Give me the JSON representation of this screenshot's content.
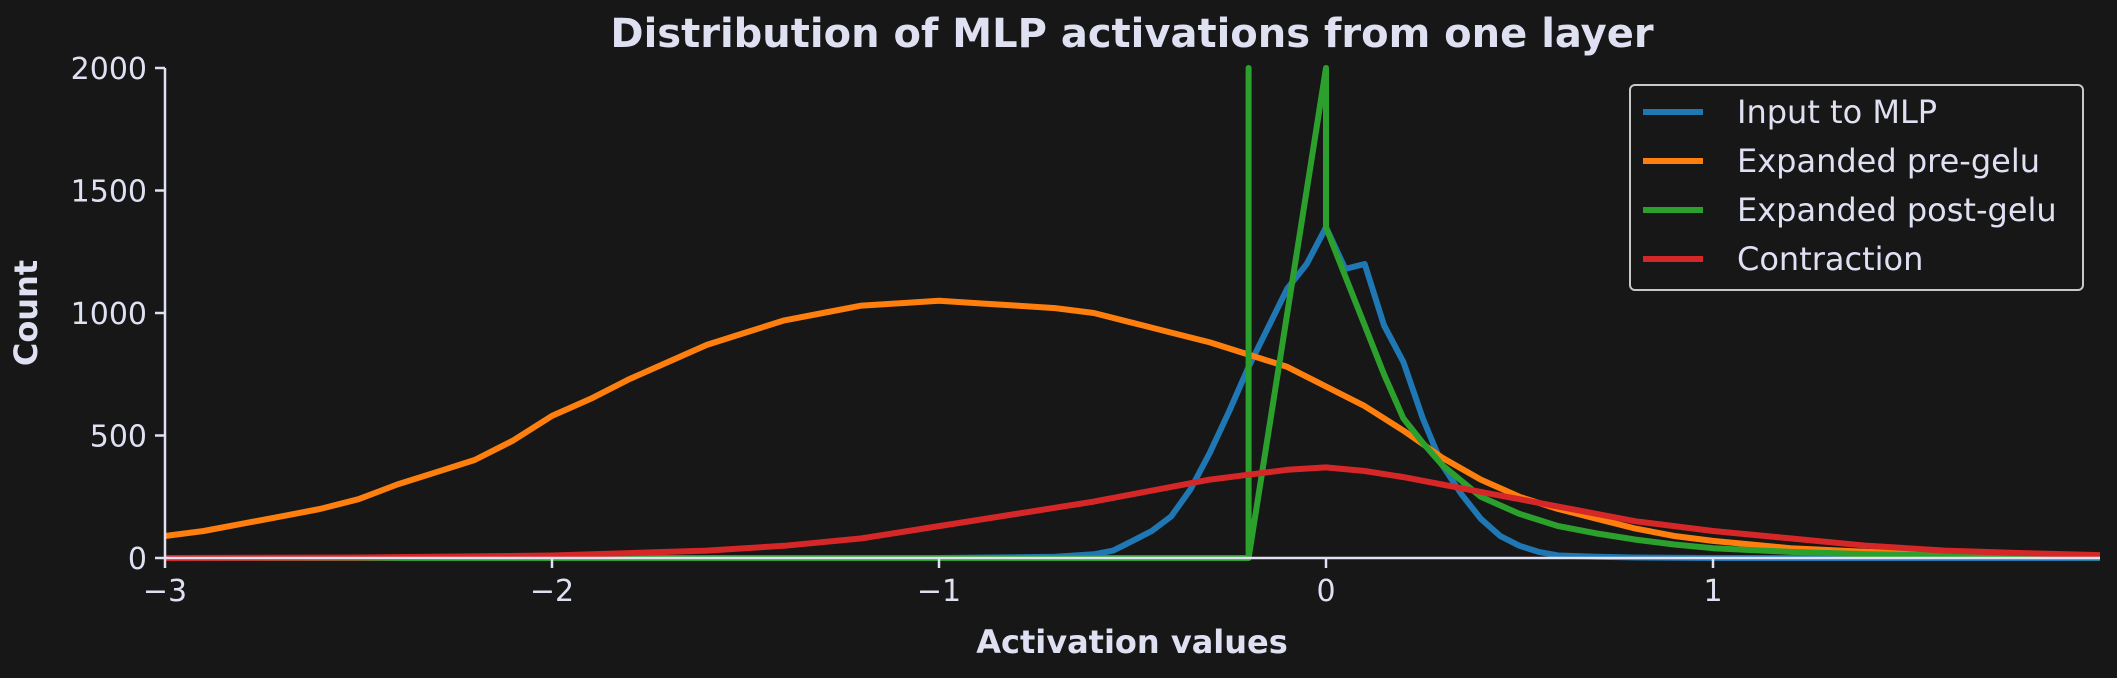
{
  "chart_data": {
    "type": "line",
    "title": "Distribution of MLP activations from one layer",
    "xlabel": "Activation values",
    "ylabel": "Count",
    "xlim": [
      -3,
      2
    ],
    "ylim": [
      0,
      2000
    ],
    "xticks": [
      -3,
      -2,
      -1,
      0,
      1
    ],
    "xtick_labels": [
      "−3",
      "−2",
      "−1",
      "0",
      "1"
    ],
    "yticks": [
      0,
      500,
      1000,
      1500,
      2000
    ],
    "ytick_labels": [
      "0",
      "500",
      "1000",
      "1500",
      "2000"
    ],
    "grid": false,
    "legend_position": "top-right",
    "vertical_lines": [
      {
        "series": "Expanded post-gelu",
        "x": -0.2,
        "y": [
          0,
          2000
        ]
      },
      {
        "series": "Expanded post-gelu",
        "x": 0.0,
        "y": [
          0,
          2000
        ]
      }
    ],
    "series": [
      {
        "name": "Input to MLP",
        "color": "#1f77b4",
        "x": [
          -3.0,
          -1.0,
          -0.7,
          -0.6,
          -0.55,
          -0.5,
          -0.45,
          -0.4,
          -0.35,
          -0.3,
          -0.25,
          -0.2,
          -0.15,
          -0.1,
          -0.05,
          0.0,
          0.05,
          0.1,
          0.15,
          0.2,
          0.25,
          0.3,
          0.35,
          0.4,
          0.45,
          0.5,
          0.55,
          0.6,
          0.7,
          0.8,
          1.0,
          2.0
        ],
        "y": [
          0,
          0,
          5,
          15,
          30,
          70,
          110,
          170,
          280,
          430,
          600,
          780,
          940,
          1100,
          1200,
          1350,
          1180,
          1200,
          950,
          800,
          570,
          380,
          260,
          160,
          90,
          50,
          25,
          10,
          5,
          2,
          0,
          0
        ]
      },
      {
        "name": "Expanded pre-gelu",
        "color": "#ff7f0e",
        "x": [
          -3.0,
          -2.9,
          -2.8,
          -2.7,
          -2.6,
          -2.5,
          -2.4,
          -2.3,
          -2.2,
          -2.1,
          -2.0,
          -1.9,
          -1.8,
          -1.7,
          -1.6,
          -1.5,
          -1.4,
          -1.3,
          -1.2,
          -1.1,
          -1.0,
          -0.9,
          -0.8,
          -0.7,
          -0.6,
          -0.5,
          -0.4,
          -0.3,
          -0.2,
          -0.1,
          0.0,
          0.1,
          0.2,
          0.3,
          0.4,
          0.5,
          0.6,
          0.7,
          0.8,
          0.9,
          1.0,
          1.2,
          1.4,
          1.6,
          1.8,
          2.0
        ],
        "y": [
          90,
          110,
          140,
          170,
          200,
          240,
          300,
          350,
          400,
          480,
          580,
          650,
          730,
          800,
          870,
          920,
          970,
          1000,
          1030,
          1040,
          1050,
          1040,
          1030,
          1020,
          1000,
          960,
          920,
          880,
          830,
          780,
          700,
          620,
          520,
          410,
          320,
          250,
          200,
          160,
          120,
          90,
          70,
          40,
          25,
          15,
          10,
          8
        ]
      },
      {
        "name": "Expanded post-gelu",
        "color": "#2ca02c",
        "x": [
          -3.0,
          -0.2,
          -0.2,
          -0.2,
          0.0,
          0.0,
          0.05,
          0.1,
          0.15,
          0.2,
          0.25,
          0.3,
          0.4,
          0.5,
          0.6,
          0.7,
          0.8,
          0.9,
          1.0,
          1.2,
          1.4,
          1.6,
          1.8,
          2.0
        ],
        "y": [
          0,
          0,
          2000,
          0,
          2000,
          1350,
          1150,
          950,
          750,
          570,
          470,
          380,
          250,
          180,
          130,
          100,
          75,
          55,
          40,
          25,
          15,
          10,
          5,
          3
        ]
      },
      {
        "name": "Contraction",
        "color": "#d62728",
        "x": [
          -3.0,
          -2.5,
          -2.0,
          -1.8,
          -1.6,
          -1.4,
          -1.2,
          -1.0,
          -0.8,
          -0.6,
          -0.4,
          -0.3,
          -0.2,
          -0.1,
          0.0,
          0.1,
          0.2,
          0.3,
          0.4,
          0.5,
          0.6,
          0.7,
          0.8,
          0.9,
          1.0,
          1.2,
          1.4,
          1.6,
          1.8,
          2.0
        ],
        "y": [
          0,
          2,
          10,
          20,
          30,
          50,
          80,
          130,
          180,
          230,
          290,
          320,
          340,
          360,
          370,
          355,
          330,
          300,
          270,
          240,
          210,
          180,
          150,
          130,
          110,
          80,
          50,
          30,
          20,
          12
        ]
      }
    ]
  }
}
